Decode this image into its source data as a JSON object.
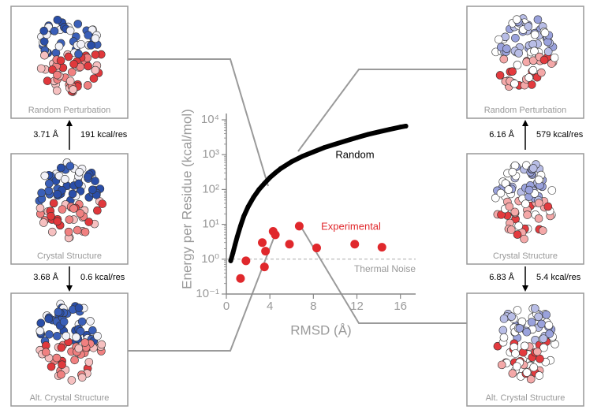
{
  "chart_data": {
    "type": "scatter",
    "log_y": true,
    "xlabel": "RMSD (Å)",
    "ylabel": "Energy per Residue (kcal/mol)",
    "xlim": [
      0,
      17.4
    ],
    "xticks": [
      0,
      4,
      8,
      12,
      16
    ],
    "ylim": [
      0.1,
      10000
    ],
    "yticks": [
      {
        "value": 0.1,
        "label": "10⁻¹"
      },
      {
        "value": 1,
        "label": "10⁰"
      },
      {
        "value": 10,
        "label": "10¹"
      },
      {
        "value": 100,
        "label": "10²"
      },
      {
        "value": 1000,
        "label": "10³"
      },
      {
        "value": 10000,
        "label": "10⁴"
      }
    ],
    "series": [
      {
        "name": "Random",
        "color": "#000000",
        "x": [
          0.4,
          0.6,
          0.8,
          1,
          1.3,
          1.6,
          2,
          2.5,
          3,
          3.5,
          4,
          4.5,
          5,
          6,
          7,
          8,
          9,
          10,
          11,
          12,
          13,
          14,
          15,
          16,
          16.5
        ],
        "values": [
          0.9,
          1.5,
          2.6,
          4.4,
          9,
          17,
          32,
          60,
          100,
          150,
          220,
          300,
          400,
          630,
          900,
          1200,
          1600,
          2000,
          2500,
          3100,
          3800,
          4500,
          5300,
          6200,
          6600
        ]
      },
      {
        "name": "Experimental",
        "color": "#e0282c",
        "x": [
          1.3,
          1.8,
          3.3,
          3.6,
          3.5,
          4.3,
          4.5,
          5.8,
          6.7,
          8.3,
          11.8,
          14.3
        ],
        "values": [
          0.28,
          0.9,
          3,
          1.7,
          0.6,
          6.3,
          5,
          2.7,
          8.9,
          2.1,
          2.7,
          2.2
        ]
      }
    ],
    "reference_line": {
      "value": 1,
      "label": "Thermal Noise"
    }
  },
  "figure": {
    "left": {
      "panels": [
        "Random Perturbation",
        "Crystal Structure",
        "Alt. Crystal Structure"
      ],
      "transitions": [
        {
          "rmsd": "3.71 Å",
          "energy": "191 kcal/res"
        },
        {
          "rmsd": "3.68 Å",
          "energy": "0.6 kcal/res"
        }
      ]
    },
    "right": {
      "panels": [
        "Random Perturbation",
        "Crystal Structure",
        "Alt. Crystal Structure"
      ],
      "transitions": [
        {
          "rmsd": "6.16 Å",
          "energy": "579 kcal/res"
        },
        {
          "rmsd": "6.83 Å",
          "energy": "5.4 kcal/res"
        }
      ]
    }
  }
}
